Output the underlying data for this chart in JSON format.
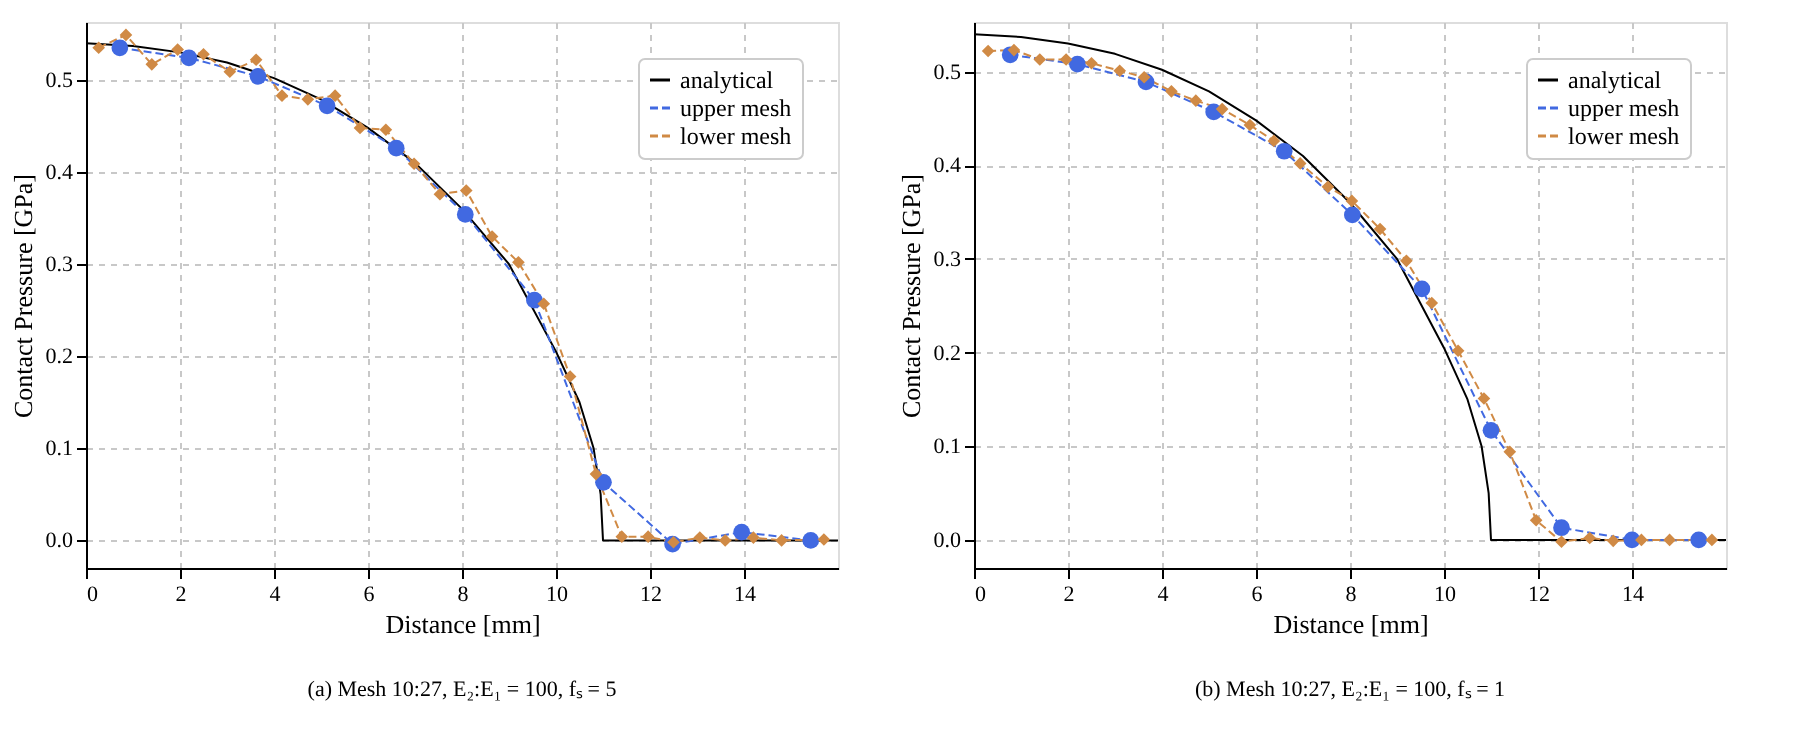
{
  "chart_data": [
    {
      "type": "line",
      "xlabel": "Distance [mm]",
      "ylabel": "Contact Pressure [GPa]",
      "annotations": [
        "(a) Mesh 10:27, E₂:E₁ = 100, fₛ = 5"
      ],
      "xlim": [
        0,
        16
      ],
      "ylim": [
        -0.03,
        0.563
      ],
      "xticks": [
        0,
        2,
        4,
        6,
        8,
        10,
        12,
        14
      ],
      "yticks": [
        {
          "value": 0,
          "label": "0.0"
        },
        {
          "value": 0.1,
          "label": "0.1"
        },
        {
          "value": 0.2,
          "label": "0.2"
        },
        {
          "value": 0.3,
          "label": "0.3"
        },
        {
          "value": 0.4,
          "label": "0.4"
        },
        {
          "value": 0.5,
          "label": "0.5"
        }
      ],
      "grid": true,
      "legend": "top right",
      "series": [
        {
          "name": "analytical",
          "color": "#000000",
          "marker": "none",
          "line_style": "solid",
          "x": [
            0,
            1,
            2,
            3,
            4,
            5,
            6,
            7,
            8,
            9,
            10,
            10.5,
            10.8,
            10.95,
            11,
            16
          ],
          "values": [
            0.54,
            0.537,
            0.53,
            0.519,
            0.502,
            0.479,
            0.448,
            0.41,
            0.36,
            0.3,
            0.205,
            0.15,
            0.1,
            0.05,
            0,
            0
          ]
        },
        {
          "name": "upper mesh",
          "color": "#4169e1",
          "marker": "circle",
          "line_style": "dashed",
          "x": [
            0.72,
            2.19,
            3.66,
            5.13,
            6.6,
            8.07,
            9.54,
            11.01,
            12.48,
            13.95,
            15.42
          ],
          "values": [
            0.535,
            0.524,
            0.504,
            0.472,
            0.426,
            0.354,
            0.261,
            0.063,
            -0.004,
            0.009,
            0
          ]
        },
        {
          "name": "lower mesh",
          "color": "#d08a45",
          "marker": "diamond",
          "line_style": "dashed",
          "x": [
            0.27,
            0.85,
            1.4,
            1.95,
            2.5,
            3.06,
            3.62,
            4.17,
            4.72,
            5.3,
            5.83,
            6.38,
            6.98,
            7.53,
            8.09,
            8.64,
            9.2,
            9.74,
            10.3,
            10.85,
            11.4,
            11.96,
            12.5,
            13.06,
            13.6,
            14.2,
            14.8,
            15.7
          ],
          "values": [
            0.535,
            0.549,
            0.517,
            0.533,
            0.528,
            0.509,
            0.522,
            0.483,
            0.479,
            0.483,
            0.448,
            0.446,
            0.409,
            0.376,
            0.38,
            0.33,
            0.302,
            0.257,
            0.178,
            0.072,
            0.004,
            0.004,
            -0.002,
            0.003,
            0,
            0.003,
            0,
            0.001
          ]
        }
      ]
    },
    {
      "type": "line",
      "xlabel": "Distance [mm]",
      "ylabel": "Contact Pressure [GPa]",
      "annotations": [
        "(b) Mesh 10:27, E₂:E₁ = 100, fₛ = 1"
      ],
      "xlim": [
        0,
        16
      ],
      "ylim": [
        -0.03,
        0.553
      ],
      "xticks": [
        0,
        2,
        4,
        6,
        8,
        10,
        12,
        14
      ],
      "yticks": [
        {
          "value": 0,
          "label": "0.0"
        },
        {
          "value": 0.1,
          "label": "0.1"
        },
        {
          "value": 0.2,
          "label": "0.2"
        },
        {
          "value": 0.3,
          "label": "0.3"
        },
        {
          "value": 0.4,
          "label": "0.4"
        },
        {
          "value": 0.5,
          "label": "0.5"
        }
      ],
      "grid": true,
      "legend": "top right",
      "series": [
        {
          "name": "analytical",
          "color": "#000000",
          "marker": "none",
          "line_style": "solid",
          "x": [
            0,
            1,
            2,
            3,
            4,
            5,
            6,
            7,
            8,
            9,
            10,
            10.5,
            10.8,
            10.95,
            11,
            16
          ],
          "values": [
            0.54,
            0.537,
            0.53,
            0.519,
            0.502,
            0.479,
            0.448,
            0.41,
            0.36,
            0.3,
            0.205,
            0.15,
            0.1,
            0.05,
            0,
            0
          ]
        },
        {
          "name": "upper mesh",
          "color": "#4169e1",
          "marker": "circle",
          "line_style": "dashed",
          "x": [
            0.77,
            2.2,
            3.66,
            5.1,
            6.6,
            8.05,
            9.53,
            11.0,
            12.5,
            14.0,
            15.42
          ],
          "values": [
            0.518,
            0.508,
            0.489,
            0.457,
            0.415,
            0.347,
            0.268,
            0.117,
            0.013,
            0,
            0
          ]
        },
        {
          "name": "lower mesh",
          "color": "#d08a45",
          "marker": "diamond",
          "line_style": "dashed",
          "x": [
            0.3,
            0.85,
            1.4,
            1.96,
            2.5,
            3.1,
            3.62,
            4.2,
            4.72,
            5.28,
            5.87,
            6.38,
            6.94,
            7.53,
            8.04,
            8.64,
            9.2,
            9.74,
            10.3,
            10.85,
            11.4,
            11.96,
            12.5,
            13.1,
            13.6,
            14.2,
            14.8,
            15.7
          ],
          "values": [
            0.522,
            0.523,
            0.513,
            0.513,
            0.509,
            0.501,
            0.494,
            0.479,
            0.469,
            0.46,
            0.443,
            0.426,
            0.402,
            0.377,
            0.362,
            0.332,
            0.298,
            0.253,
            0.202,
            0.151,
            0.094,
            0.021,
            -0.002,
            0.002,
            -0.001,
            0,
            0,
            0
          ]
        }
      ]
    }
  ]
}
